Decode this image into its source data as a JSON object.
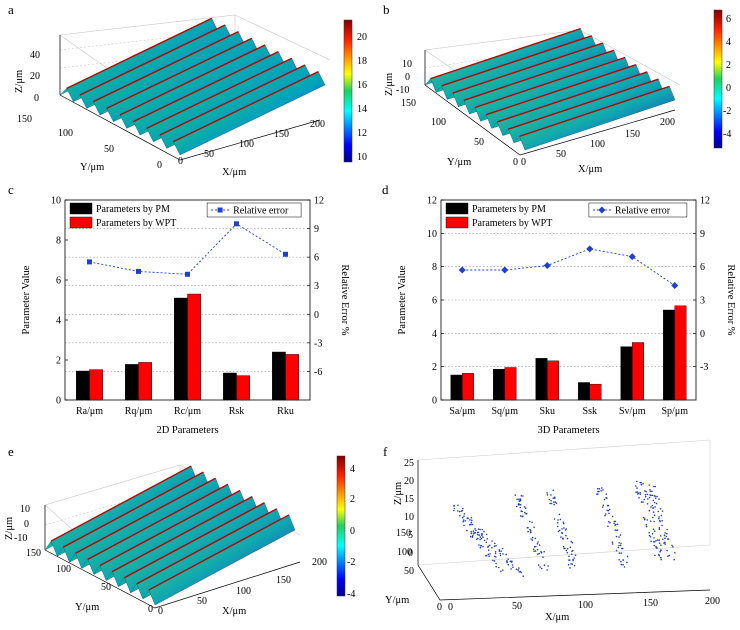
{
  "panels": {
    "a": {
      "letter": "a",
      "z_label": "Z/μm",
      "y_label": "Y/μm",
      "x_label": "X/μm",
      "z_ticks": [
        "0",
        "20",
        "40"
      ],
      "y_ticks": [
        "150",
        "100",
        "50",
        "0"
      ],
      "x_ticks": [
        "0",
        "50",
        "100",
        "150",
        "200"
      ],
      "colorbar_ticks": [
        "20",
        "18",
        "16",
        "14",
        "12",
        "10"
      ],
      "colorbar_range": [
        9.5,
        21
      ]
    },
    "b": {
      "letter": "b",
      "z_label": "Z/μm",
      "y_label": "Y/μm",
      "x_label": "X/μm",
      "z_ticks": [
        "10",
        "0",
        "-10"
      ],
      "y_ticks": [
        "150",
        "100",
        "50",
        "0"
      ],
      "x_ticks": [
        "0",
        "50",
        "100",
        "150",
        "200"
      ],
      "colorbar_ticks": [
        "6",
        "4",
        "2",
        "0",
        "-2",
        "-4"
      ],
      "colorbar_range": [
        -5,
        7
      ]
    },
    "e": {
      "letter": "e",
      "z_label": "Z/μm",
      "y_label": "Y/μm",
      "x_label": "X/μm",
      "z_ticks": [
        "10",
        "0",
        "-10"
      ],
      "y_ticks": [
        "150",
        "100",
        "50",
        "0"
      ],
      "x_ticks": [
        "0",
        "50",
        "100",
        "150",
        "200"
      ],
      "colorbar_ticks": [
        "4",
        "2",
        "0",
        "-2",
        "-4"
      ],
      "colorbar_range": [
        -4.5,
        5
      ]
    },
    "f": {
      "letter": "f",
      "z_label": "Z/μm",
      "y_label": "Y/μm",
      "x_label": "X/μm",
      "z_ticks": [
        "25",
        "20",
        "15",
        "10",
        "5",
        "0"
      ],
      "y_ticks": [
        "150",
        "100",
        "50",
        "0"
      ],
      "x_ticks": [
        "0",
        "50",
        "100",
        "150",
        "200"
      ]
    }
  },
  "chart_data": [
    {
      "type": "bar",
      "panel": "c",
      "title": "",
      "xlabel": "2D Parameters",
      "ylabel": "Parameter Value",
      "y2label": "Relative Error %",
      "categories": [
        "Ra/μm",
        "Rq/μm",
        "Rc/μm",
        "Rsk",
        "Rku"
      ],
      "ylim": [
        0,
        10
      ],
      "yticks": [
        "0",
        "2",
        "4",
        "6",
        "8",
        "10"
      ],
      "y2lim": [
        -9,
        12
      ],
      "y2ticks": [
        "-6",
        "-3",
        "0",
        "3",
        "6",
        "9",
        "12"
      ],
      "series": [
        {
          "name": "Parameters by PM",
          "color": "#000000",
          "values": [
            1.45,
            1.78,
            5.1,
            1.35,
            2.4
          ]
        },
        {
          "name": "Parameters by WPT",
          "color": "#ff0000",
          "values": [
            1.52,
            1.88,
            5.3,
            1.22,
            2.28
          ]
        }
      ],
      "line": {
        "name": "Relative error",
        "color": "#1f3fd0",
        "marker": "square",
        "values": [
          5.5,
          4.5,
          4.2,
          9.5,
          6.3
        ]
      },
      "legend_position": "top"
    },
    {
      "type": "bar",
      "panel": "d",
      "title": "",
      "xlabel": "3D Parameters",
      "ylabel": "Parameter Value",
      "y2label": "Relative Error %",
      "categories": [
        "Sa/μm",
        "Sq/μm",
        "Sku",
        "Ssk",
        "Sv/μm",
        "Sp/μm"
      ],
      "ylim": [
        0,
        12
      ],
      "yticks": [
        "0",
        "2",
        "4",
        "6",
        "8",
        "10",
        "12"
      ],
      "y2lim": [
        -6,
        12
      ],
      "y2ticks": [
        "-3",
        "0",
        "3",
        "6",
        "9",
        "12"
      ],
      "series": [
        {
          "name": "Parameters by PM",
          "color": "#000000",
          "values": [
            1.5,
            1.85,
            2.5,
            1.05,
            3.2,
            5.4
          ]
        },
        {
          "name": "Parameters by WPT",
          "color": "#ff0000",
          "values": [
            1.6,
            1.95,
            2.35,
            0.95,
            3.45,
            5.65
          ]
        }
      ],
      "line": {
        "name": "Relative error",
        "color": "#1f3fd0",
        "marker": "diamond",
        "values": [
          5.7,
          5.7,
          6.1,
          7.6,
          6.9,
          4.3
        ]
      },
      "legend_position": "top"
    }
  ]
}
